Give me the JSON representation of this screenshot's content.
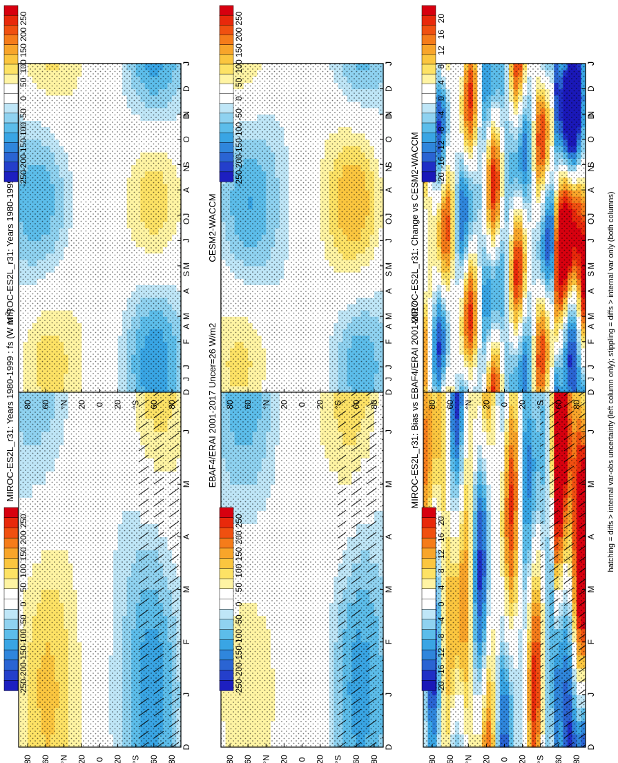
{
  "footer_note": "hatching = diffs > internal var-obs uncertainty (left column only); stippling = diffs > internal var only (both columns)",
  "months": [
    "D",
    "J",
    "F",
    "M",
    "A",
    "M",
    "J",
    "J",
    "A",
    "S",
    "O",
    "N",
    "D",
    "J"
  ],
  "lat_ticks": [
    "80",
    "60",
    "°N",
    "20",
    "0",
    "20",
    "°S",
    "60",
    "80"
  ],
  "chart_data": [
    {
      "type": "heatmap",
      "id": "p00",
      "kind": "abs",
      "title": "MIROC-ES2L_r31: Years 1980-1999 : fs (W m",
      "title_sup": "-2",
      "title_tail": ")",
      "xlabel": "",
      "ylabel": "",
      "x_categories": [
        "D",
        "J",
        "F",
        "M",
        "A",
        "M",
        "J",
        "J",
        "A",
        "S",
        "O",
        "N",
        "D",
        "J"
      ],
      "y_ticks": [
        "80",
        "60",
        "°N",
        "20",
        "0",
        "20",
        "°S",
        "60",
        "80"
      ],
      "colorbar_labels": [
        "250",
        "200",
        "150",
        "100",
        "50",
        "0",
        "-50",
        "-100",
        "-150",
        "-200",
        "-250"
      ],
      "colorbar_range": [
        -275,
        275
      ],
      "stippling": true,
      "hatching": true
    },
    {
      "type": "heatmap",
      "id": "p01",
      "kind": "abs",
      "title": "MIROC-ES2L_r31: Years 1980-1999 : fs (W m",
      "title_sup": "-2",
      "title_tail": ")",
      "xlabel": "",
      "ylabel": "",
      "x_categories": [
        "D",
        "J",
        "F",
        "M",
        "A",
        "M",
        "J",
        "J",
        "A",
        "S",
        "O",
        "N",
        "D",
        "J"
      ],
      "y_ticks": [
        "80",
        "60",
        "°N",
        "20",
        "0",
        "20",
        "°S",
        "60",
        "80"
      ],
      "colorbar_labels": [
        "250",
        "200",
        "150",
        "100",
        "50",
        "0",
        "-50",
        "-100",
        "-150",
        "-200",
        "-250"
      ],
      "colorbar_range": [
        -275,
        275
      ],
      "stippling": true,
      "hatching": false
    },
    {
      "type": "heatmap",
      "id": "p10",
      "kind": "abs",
      "title": "EBAF4/ERAI 2001-2017 Uncer=26 W/m2",
      "title_sup": "",
      "title_tail": "",
      "xlabel": "",
      "ylabel": "",
      "x_categories": [
        "D",
        "J",
        "F",
        "M",
        "A",
        "M",
        "J",
        "J",
        "A",
        "S",
        "O",
        "N",
        "D",
        "J"
      ],
      "y_ticks": [
        "80",
        "60",
        "°N",
        "20",
        "0",
        "20",
        "°S",
        "60",
        "80"
      ],
      "colorbar_labels": [
        "250",
        "200",
        "150",
        "100",
        "50",
        "0",
        "-50",
        "-100",
        "-150",
        "-200",
        "-250"
      ],
      "colorbar_range": [
        -275,
        275
      ],
      "stippling": true,
      "hatching": true
    },
    {
      "type": "heatmap",
      "id": "p11",
      "kind": "abs",
      "title": "CESM2-WACCM",
      "title_sup": "",
      "title_tail": "",
      "xlabel": "",
      "ylabel": "",
      "x_categories": [
        "D",
        "J",
        "F",
        "M",
        "A",
        "M",
        "J",
        "J",
        "A",
        "S",
        "O",
        "N",
        "D",
        "J"
      ],
      "y_ticks": [
        "80",
        "60",
        "°N",
        "20",
        "0",
        "20",
        "°S",
        "60",
        "80"
      ],
      "colorbar_labels": [
        "250",
        "200",
        "150",
        "100",
        "50",
        "0",
        "-50",
        "-100",
        "-150",
        "-200",
        "-250"
      ],
      "colorbar_range": [
        -275,
        275
      ],
      "stippling": true,
      "hatching": false
    },
    {
      "type": "heatmap",
      "id": "p20",
      "kind": "diff",
      "title": "MIROC-ES2L_r31: Bias vs EBAF4/ERAI 2001-2017",
      "title_sup": "",
      "title_tail": "",
      "xlabel": "",
      "ylabel": "",
      "x_categories": [
        "D",
        "J",
        "F",
        "M",
        "A",
        "M",
        "J",
        "J",
        "A",
        "S",
        "O",
        "N",
        "D",
        "J"
      ],
      "y_ticks": [
        "80",
        "60",
        "°N",
        "20",
        "0",
        "20",
        "°S",
        "60",
        "80"
      ],
      "colorbar_labels": [
        "20",
        "16",
        "12",
        "8",
        "4",
        "0",
        "-4",
        "-8",
        "-12",
        "-16",
        "-20"
      ],
      "colorbar_range": [
        -22,
        22
      ],
      "stippling": true,
      "hatching": true
    },
    {
      "type": "heatmap",
      "id": "p21",
      "kind": "diff",
      "title": "MIROC-ES2L_r31: Change vs CESM2-WACCM",
      "title_sup": "",
      "title_tail": "",
      "xlabel": "",
      "ylabel": "",
      "x_categories": [
        "D",
        "J",
        "F",
        "M",
        "A",
        "M",
        "J",
        "J",
        "A",
        "S",
        "O",
        "N",
        "D",
        "J"
      ],
      "y_ticks": [
        "80",
        "60",
        "°N",
        "20",
        "0",
        "20",
        "°S",
        "60",
        "80"
      ],
      "colorbar_labels": [
        "20",
        "16",
        "12",
        "8",
        "4",
        "0",
        "-4",
        "-8",
        "-12",
        "-16",
        "-20"
      ],
      "colorbar_range": [
        -22,
        22
      ],
      "stippling": true,
      "hatching": false
    }
  ]
}
